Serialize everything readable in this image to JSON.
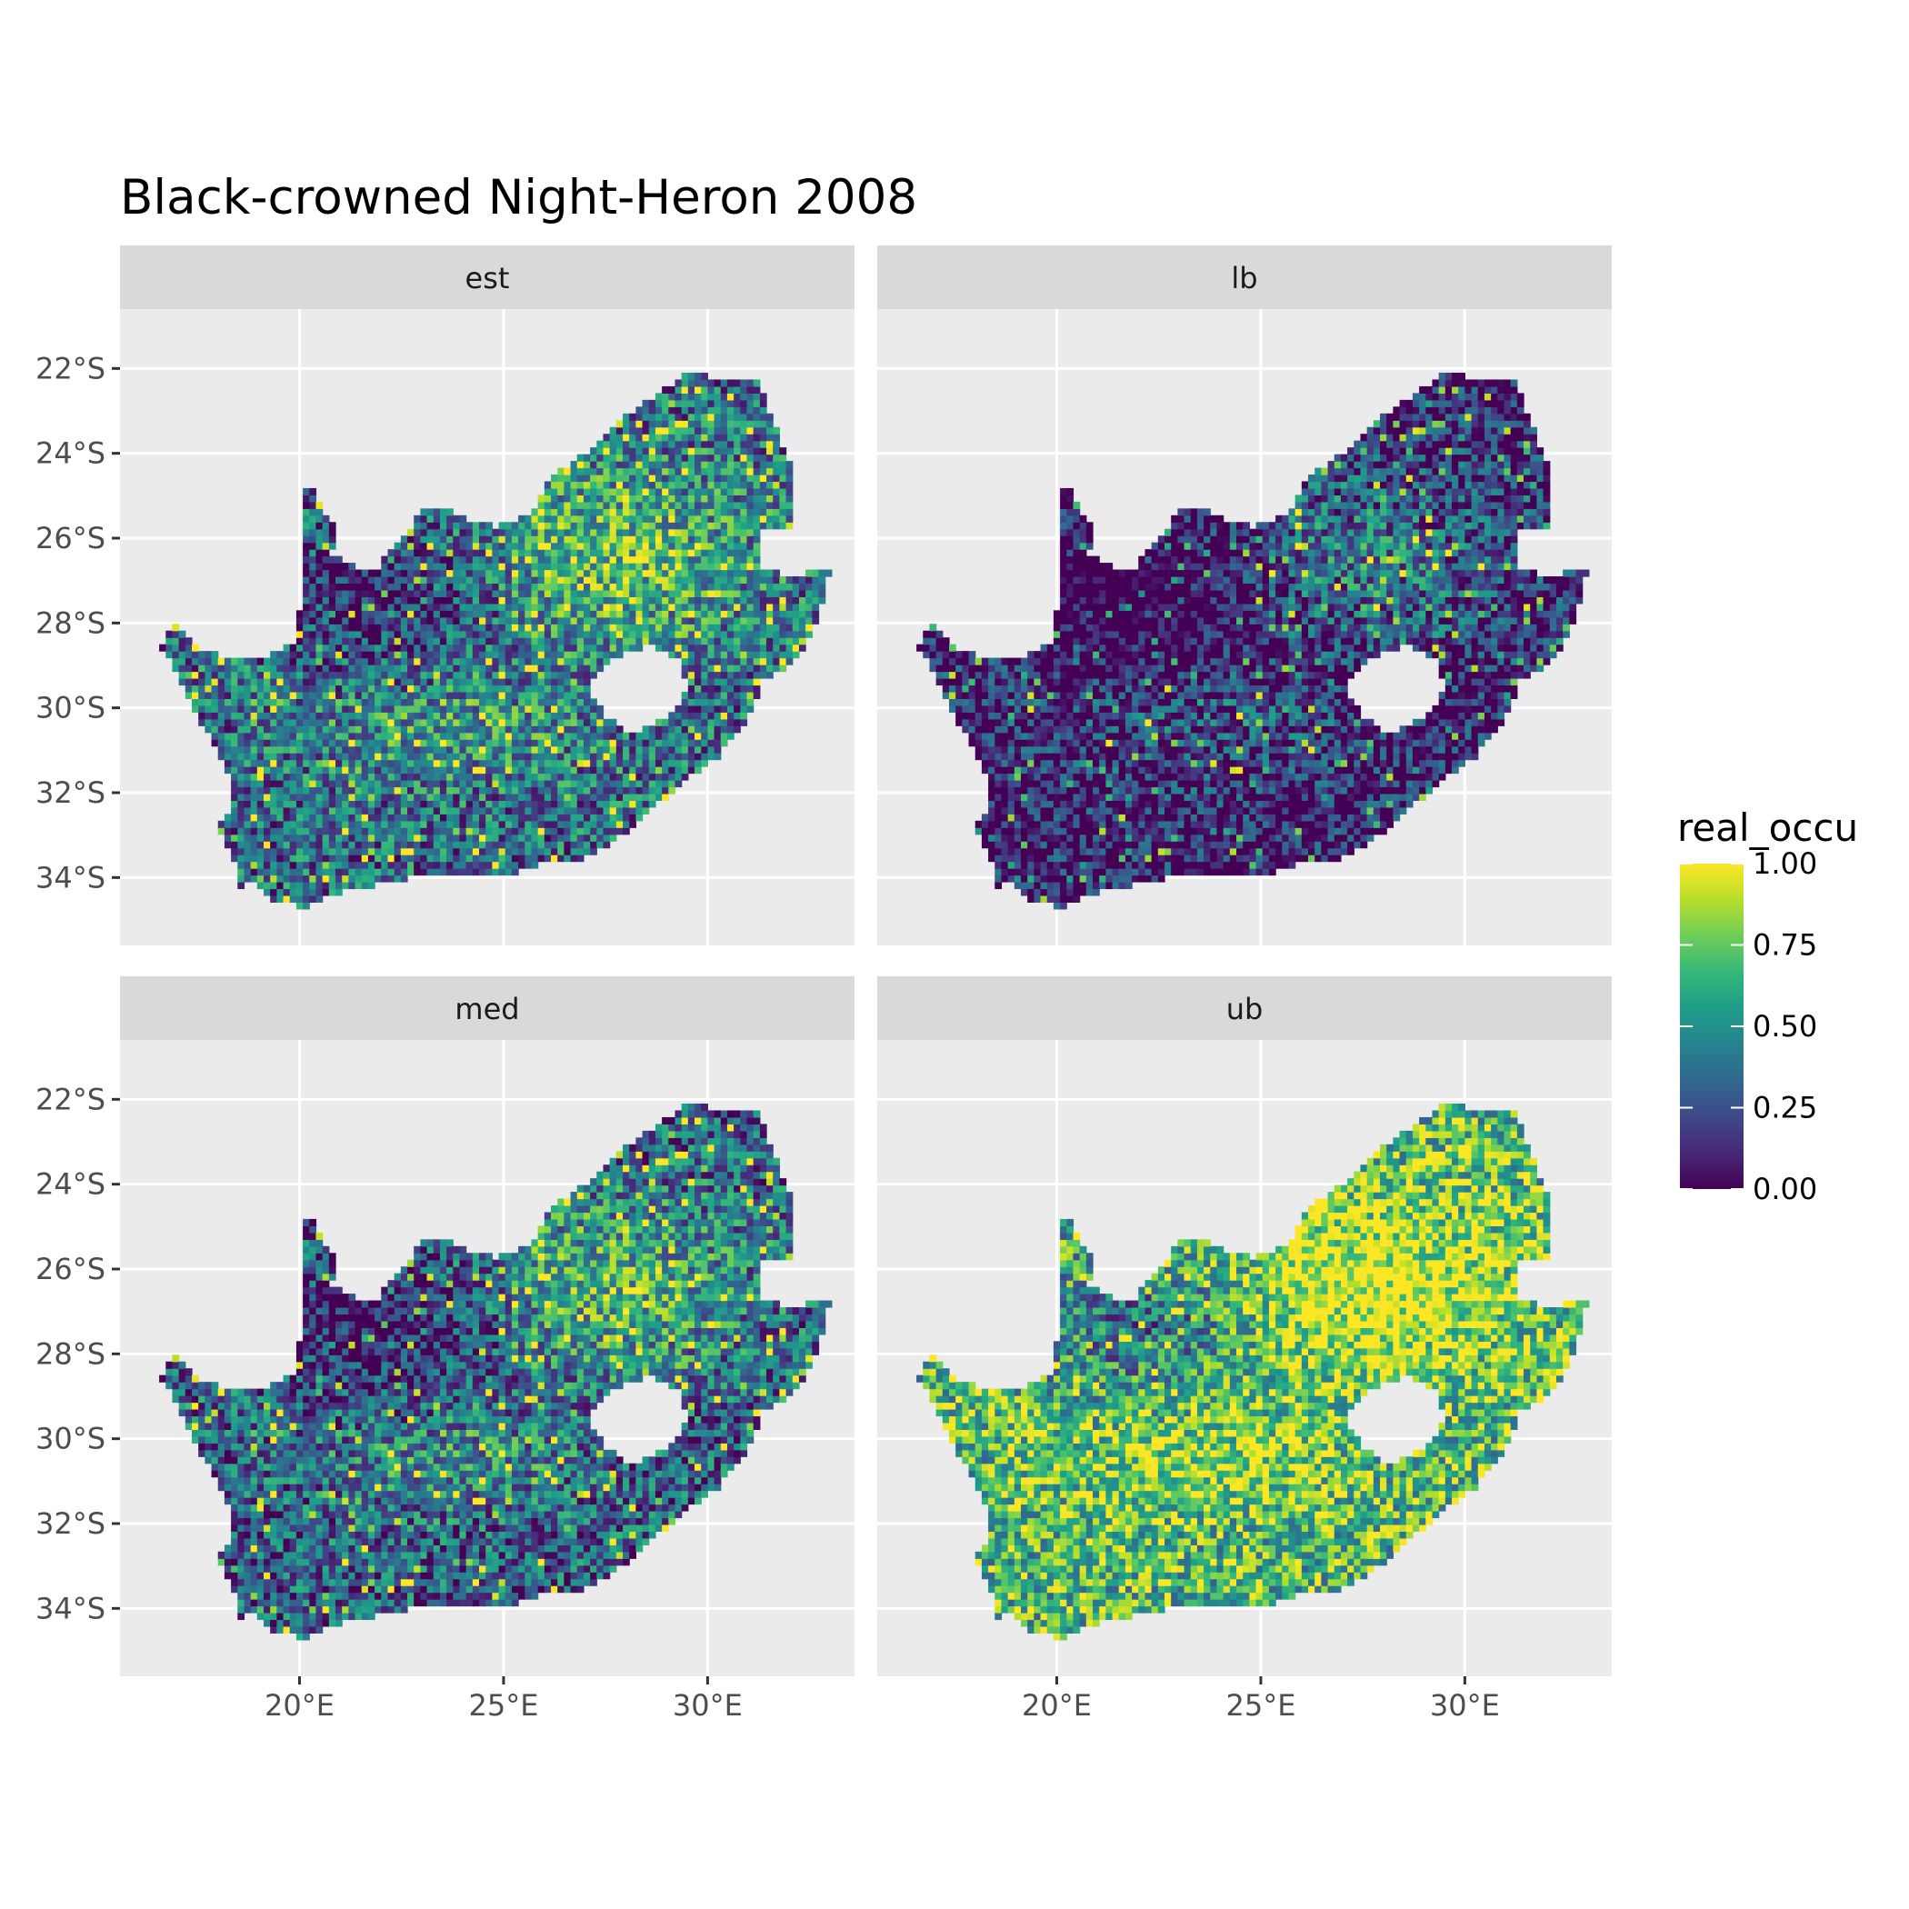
{
  "title": "Black-crowned Night-Heron 2008",
  "panels": [
    {
      "label": "est"
    },
    {
      "label": "lb"
    },
    {
      "label": "med"
    },
    {
      "label": "ub"
    }
  ],
  "axes": {
    "x_ticks": [
      "20°E",
      "25°E",
      "30°E"
    ],
    "x_tick_values": [
      20,
      25,
      30
    ],
    "y_ticks": [
      "22°S",
      "24°S",
      "26°S",
      "28°S",
      "30°S",
      "32°S",
      "34°S"
    ],
    "y_tick_values": [
      -22,
      -24,
      -26,
      -28,
      -30,
      -32,
      -34
    ],
    "xlim": [
      15.6,
      33.6
    ],
    "ylim": [
      -35.6,
      -20.6
    ]
  },
  "legend": {
    "title": "real_occu",
    "labels": [
      "1.00",
      "0.75",
      "0.50",
      "0.25",
      "0.00"
    ],
    "values": [
      1.0,
      0.75,
      0.5,
      0.25,
      0.0
    ]
  },
  "colors": {
    "panel_bg": "#ebebeb",
    "strip_bg": "#d9d9d9",
    "grid": "#ffffff",
    "viridis": [
      "#440154",
      "#482878",
      "#3e4989",
      "#31688e",
      "#26828e",
      "#1f9e89",
      "#35b779",
      "#6ece58",
      "#b5de2b",
      "#fde725"
    ]
  },
  "chart_data": {
    "type": "heatmap",
    "title": "Black-crowned Night-Heron 2008",
    "facets": [
      "est",
      "lb",
      "med",
      "ub"
    ],
    "fill_variable": "real_occu",
    "fill_range": [
      0,
      1
    ],
    "x_axis_ticks": [
      "20°E",
      "25°E",
      "30°E"
    ],
    "y_axis_ticks": [
      "22°S",
      "24°S",
      "26°S",
      "28°S",
      "30°S",
      "32°S",
      "34°S"
    ],
    "panel_mean_level": {
      "est": 0.45,
      "lb": 0.2,
      "med": 0.4,
      "ub": 0.7
    },
    "grid": true,
    "legend_position": "right"
  }
}
